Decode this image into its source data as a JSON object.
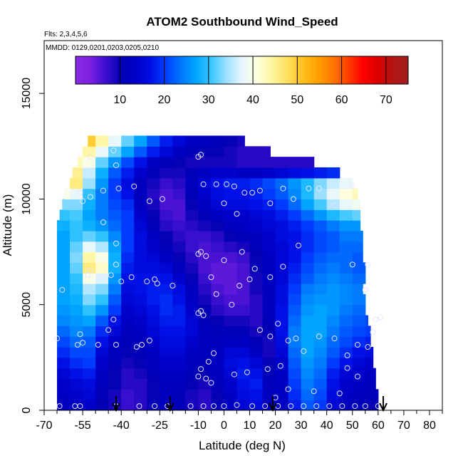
{
  "chart_data": {
    "type": "heatmap",
    "title": "ATOM2 Southbound Wind_Speed",
    "subtitle_flights": "Flts: 2,3,4,5,6",
    "subtitle_dates": "MMDD: 0129,0201,0203,0205,0210",
    "xlabel": "Latitude (deg N)",
    "ylabel": "Altitude (m)",
    "xlim": [
      -70,
      85
    ],
    "ylim": [
      0,
      17500
    ],
    "x_ticks": [
      -70,
      -55,
      -40,
      -25,
      -10,
      0,
      10,
      20,
      30,
      40,
      50,
      60,
      70,
      80
    ],
    "x_tick_labels": [
      "-70",
      "-55",
      "-40",
      "-25",
      "-10",
      "0",
      "10",
      "20",
      "30",
      "40",
      "50",
      "60",
      "70",
      "80"
    ],
    "x_minor_ticks": [
      -65,
      -60,
      -50,
      -45,
      -35,
      -30,
      -20,
      -15,
      -5,
      5,
      15,
      25,
      35,
      45,
      55,
      65,
      75,
      85
    ],
    "y_ticks": [
      0,
      5000,
      10000,
      15000
    ],
    "y_tick_labels": [
      "0",
      "5000",
      "10000",
      "15000"
    ],
    "colorbar": {
      "range": [
        0,
        75
      ],
      "ticks": [
        10,
        20,
        30,
        40,
        50,
        60,
        70
      ],
      "tick_labels": [
        "10",
        "20",
        "30",
        "40",
        "50",
        "60",
        "70"
      ],
      "colors": [
        "#8a2be2",
        "#7b1fe0",
        "#3b0fd0",
        "#0000b4",
        "#0000c8",
        "#0010e6",
        "#0040ff",
        "#0078ff",
        "#00a8ff",
        "#3cc8ff",
        "#a0e0ff",
        "#e6f6ff",
        "#ffffe0",
        "#fff5a0",
        "#ffe060",
        "#ffc020",
        "#ffa000",
        "#ff7800",
        "#ff4000",
        "#ff0000",
        "#dc0000",
        "#b41414",
        "#a01e1e"
      ]
    },
    "field_grid": {
      "lat_start": -65,
      "lat_end": 60,
      "lat_step": 5,
      "alt_start": 0,
      "alt_end": 12500,
      "alt_step": 500,
      "values": [
        [
          12,
          13,
          14,
          10,
          9,
          7,
          8,
          10,
          12,
          11,
          9,
          8,
          10,
          13,
          15,
          16,
          12,
          13,
          18,
          22,
          20,
          15,
          12,
          11,
          10,
          10
        ],
        [
          13,
          14,
          15,
          11,
          9,
          7,
          8,
          10,
          12,
          11,
          9,
          8,
          10,
          13,
          16,
          17,
          12,
          13,
          19,
          23,
          21,
          16,
          13,
          12,
          11,
          10
        ],
        [
          14,
          15,
          16,
          12,
          10,
          8,
          8,
          10,
          12,
          12,
          10,
          9,
          11,
          14,
          17,
          18,
          12,
          13,
          20,
          24,
          22,
          17,
          14,
          13,
          12,
          11
        ],
        [
          15,
          17,
          18,
          13,
          10,
          8,
          9,
          11,
          13,
          13,
          11,
          10,
          12,
          15,
          18,
          17,
          11,
          13,
          21,
          25,
          23,
          18,
          15,
          14,
          13,
          12
        ],
        [
          17,
          19,
          20,
          14,
          11,
          9,
          10,
          12,
          14,
          14,
          12,
          11,
          13,
          16,
          17,
          15,
          10,
          14,
          22,
          26,
          24,
          20,
          17,
          15,
          14,
          13
        ],
        [
          19,
          21,
          21,
          15,
          12,
          10,
          11,
          13,
          15,
          15,
          13,
          12,
          13,
          15,
          15,
          13,
          9,
          15,
          23,
          27,
          25,
          22,
          19,
          17,
          16,
          15
        ],
        [
          21,
          23,
          22,
          17,
          13,
          11,
          12,
          14,
          16,
          16,
          14,
          12,
          12,
          13,
          13,
          11,
          9,
          16,
          24,
          27,
          26,
          23,
          21,
          19,
          18,
          17
        ],
        [
          23,
          25,
          24,
          19,
          15,
          12,
          13,
          15,
          17,
          17,
          15,
          12,
          11,
          11,
          11,
          9,
          10,
          17,
          24,
          27,
          27,
          24,
          22,
          21,
          20,
          19
        ],
        [
          25,
          26,
          27,
          22,
          17,
          13,
          14,
          16,
          18,
          18,
          15,
          11,
          10,
          9,
          9,
          8,
          11,
          17,
          23,
          27,
          27,
          25,
          23,
          22,
          21,
          20
        ],
        [
          26,
          27,
          30,
          26,
          20,
          14,
          15,
          17,
          19,
          18,
          14,
          10,
          8,
          7,
          7,
          8,
          12,
          17,
          22,
          26,
          27,
          26,
          24,
          23,
          22,
          21
        ],
        [
          27,
          28,
          33,
          30,
          22,
          15,
          16,
          18,
          19,
          17,
          13,
          9,
          7,
          6,
          6,
          8,
          12,
          16,
          21,
          25,
          26,
          26,
          25,
          24,
          23,
          22
        ],
        [
          27,
          29,
          35,
          33,
          24,
          16,
          17,
          18,
          18,
          16,
          12,
          8,
          6,
          5,
          6,
          9,
          12,
          16,
          20,
          24,
          25,
          26,
          25,
          24,
          23,
          22
        ],
        [
          27,
          30,
          40,
          37,
          26,
          17,
          17,
          17,
          17,
          14,
          10,
          7,
          5,
          5,
          6,
          9,
          13,
          15,
          19,
          22,
          24,
          25,
          24,
          23,
          22,
          21
        ],
        [
          27,
          32,
          46,
          42,
          28,
          18,
          16,
          16,
          15,
          12,
          9,
          6,
          5,
          5,
          6,
          10,
          13,
          15,
          18,
          21,
          23,
          24,
          23,
          22,
          22,
          21
        ],
        [
          27,
          33,
          44,
          40,
          28,
          19,
          16,
          15,
          13,
          10,
          8,
          6,
          6,
          6,
          7,
          10,
          13,
          15,
          17,
          20,
          22,
          23,
          23,
          22,
          21,
          20
        ],
        [
          27,
          32,
          38,
          35,
          27,
          20,
          16,
          14,
          11,
          9,
          7,
          6,
          7,
          8,
          9,
          11,
          14,
          15,
          17,
          19,
          21,
          22,
          23,
          23,
          22,
          21
        ],
        [
          27,
          30,
          32,
          30,
          25,
          20,
          16,
          13,
          10,
          8,
          7,
          7,
          8,
          10,
          11,
          12,
          14,
          16,
          17,
          19,
          21,
          22,
          24,
          24,
          23,
          22
        ],
        [
          28,
          30,
          28,
          26,
          23,
          20,
          15,
          11,
          8,
          7,
          8,
          9,
          10,
          12,
          13,
          14,
          15,
          16,
          18,
          20,
          22,
          24,
          26,
          26,
          25,
          24
        ],
        [
          30,
          31,
          27,
          24,
          22,
          20,
          14,
          10,
          7,
          6,
          9,
          11,
          13,
          14,
          14,
          15,
          16,
          18,
          20,
          23,
          26,
          29,
          31,
          32,
          32,
          30
        ],
        [
          33,
          33,
          28,
          24,
          21,
          19,
          13,
          9,
          6,
          6,
          10,
          13,
          15,
          16,
          16,
          17,
          18,
          20,
          23,
          27,
          31,
          35,
          38,
          39,
          39,
          36
        ],
        [
          40,
          38,
          30,
          24,
          20,
          17,
          12,
          8,
          6,
          7,
          11,
          14,
          16,
          17,
          17,
          18,
          20,
          22,
          25,
          29,
          34,
          38,
          41,
          43,
          42,
          40
        ],
        [
          50,
          46,
          34,
          26,
          20,
          16,
          12,
          9,
          7,
          8,
          12,
          15,
          17,
          18,
          18,
          19,
          21,
          23,
          26,
          29,
          33,
          36,
          38,
          38,
          36,
          34
        ],
        [
          47,
          45,
          36,
          28,
          22,
          18,
          14,
          11,
          9,
          9,
          11,
          13,
          14,
          14,
          13,
          13,
          14,
          15,
          16,
          17,
          18,
          19,
          20,
          20,
          19,
          18
        ],
        [
          42,
          43,
          40,
          32,
          26,
          21,
          17,
          13,
          11,
          10,
          9,
          9,
          9,
          9,
          8,
          8,
          8,
          8,
          8,
          8,
          8,
          8,
          8,
          8,
          8,
          8
        ],
        [
          45,
          48,
          44,
          38,
          32,
          27,
          22,
          18,
          15,
          13,
          11,
          10,
          10,
          9,
          8,
          8,
          8,
          8,
          8,
          8,
          8,
          8,
          8,
          8,
          8,
          8
        ],
        [
          60,
          55,
          50,
          44,
          38,
          32,
          27,
          22,
          18,
          15,
          13,
          12,
          11,
          10,
          9,
          9,
          9,
          9,
          9,
          9,
          9,
          9,
          9,
          9,
          9,
          9
        ]
      ]
    },
    "field_extent": [
      [
        -65,
        60
      ],
      [
        -65,
        60
      ],
      [
        -65,
        59
      ],
      [
        -65,
        59
      ],
      [
        -65,
        58
      ],
      [
        -65,
        58
      ],
      [
        -65,
        57
      ],
      [
        -65,
        57
      ],
      [
        -65,
        56
      ],
      [
        -65,
        55
      ],
      [
        -65,
        55
      ],
      [
        -65,
        54
      ],
      [
        -65,
        55
      ],
      [
        -65,
        55
      ],
      [
        -65,
        54
      ],
      [
        -65,
        54
      ],
      [
        -65,
        54
      ],
      [
        -65,
        53
      ],
      [
        -64,
        53
      ],
      [
        -63,
        53
      ],
      [
        -62,
        52
      ],
      [
        -60,
        50
      ],
      [
        -59,
        45
      ],
      [
        -57,
        35
      ],
      [
        -55,
        18
      ],
      [
        -53,
        8
      ]
    ],
    "observations": [
      [
        -64,
        200
      ],
      [
        -58,
        200
      ],
      [
        -56,
        200
      ],
      [
        -42,
        200
      ],
      [
        -33,
        200
      ],
      [
        -27,
        200
      ],
      [
        -22,
        200
      ],
      [
        -13,
        200
      ],
      [
        -8,
        200
      ],
      [
        -4,
        200
      ],
      [
        0,
        200
      ],
      [
        5,
        250
      ],
      [
        11,
        200
      ],
      [
        16,
        200
      ],
      [
        21,
        200
      ],
      [
        26,
        200
      ],
      [
        31,
        200
      ],
      [
        36,
        200
      ],
      [
        41,
        200
      ],
      [
        46,
        200
      ],
      [
        51,
        200
      ],
      [
        55,
        200
      ],
      [
        60,
        200
      ],
      [
        -10,
        1600
      ],
      [
        -9,
        1950
      ],
      [
        -5,
        1300
      ],
      [
        -7,
        1500
      ],
      [
        -6,
        2300
      ],
      [
        -4,
        2700
      ],
      [
        4,
        1700
      ],
      [
        9,
        1800
      ],
      [
        17,
        1950
      ],
      [
        22,
        2100
      ],
      [
        20,
        600
      ],
      [
        25,
        1000
      ],
      [
        35,
        900
      ],
      [
        45,
        800
      ],
      [
        52,
        1600
      ],
      [
        48,
        2000
      ],
      [
        -65,
        3400
      ],
      [
        -57,
        3100
      ],
      [
        -56,
        3600
      ],
      [
        -55,
        3200
      ],
      [
        -49,
        3100
      ],
      [
        -45,
        3800
      ],
      [
        -42,
        3100
      ],
      [
        -34,
        3000
      ],
      [
        -32,
        3100
      ],
      [
        -29,
        3300
      ],
      [
        -43,
        4300
      ],
      [
        -63,
        5700
      ],
      [
        -40,
        6100
      ],
      [
        -36,
        6300
      ],
      [
        -30,
        6100
      ],
      [
        -26,
        6000
      ],
      [
        -27,
        6200
      ],
      [
        -20,
        5900
      ],
      [
        -10,
        4600
      ],
      [
        -9,
        4700
      ],
      [
        -8,
        4500
      ],
      [
        -3,
        5500
      ],
      [
        3,
        5000
      ],
      [
        6,
        5900
      ],
      [
        10,
        6200
      ],
      [
        14,
        3800
      ],
      [
        18,
        3500
      ],
      [
        21,
        4100
      ],
      [
        25,
        3300
      ],
      [
        28,
        3400
      ],
      [
        31,
        2800
      ],
      [
        37,
        3500
      ],
      [
        43,
        3400
      ],
      [
        48,
        2600
      ],
      [
        52,
        3100
      ],
      [
        56,
        3000
      ],
      [
        58,
        3700
      ],
      [
        59,
        4300
      ],
      [
        61,
        4400
      ],
      [
        55,
        5700
      ],
      [
        -48,
        6300
      ],
      [
        -44,
        6400
      ],
      [
        -42,
        6900
      ],
      [
        -42,
        7900
      ],
      [
        -53,
        6400
      ],
      [
        -52,
        6600
      ],
      [
        -10,
        7400
      ],
      [
        -9,
        7500
      ],
      [
        -7,
        7300
      ],
      [
        -5,
        6300
      ],
      [
        0,
        7100
      ],
      [
        7,
        7500
      ],
      [
        12,
        6700
      ],
      [
        18,
        6300
      ],
      [
        23,
        6800
      ],
      [
        29,
        7800
      ],
      [
        50,
        6900
      ],
      [
        56,
        6900
      ],
      [
        -47,
        8900
      ],
      [
        -55,
        9900
      ],
      [
        -52,
        10100
      ],
      [
        -47,
        10400
      ],
      [
        -41,
        10500
      ],
      [
        -35,
        10600
      ],
      [
        -29,
        9900
      ],
      [
        -24,
        10000
      ],
      [
        -8,
        10700
      ],
      [
        -3,
        10700
      ],
      [
        1,
        10700
      ],
      [
        4,
        10600
      ],
      [
        8,
        10300
      ],
      [
        11,
        10300
      ],
      [
        14,
        10400
      ],
      [
        18,
        9800
      ],
      [
        23,
        10500
      ],
      [
        27,
        10000
      ],
      [
        33,
        10500
      ],
      [
        37,
        10500
      ],
      [
        43,
        9700
      ],
      [
        50,
        10600
      ],
      [
        0,
        9800
      ],
      [
        5,
        9300
      ],
      [
        -56,
        10300
      ],
      [
        -42,
        11600
      ],
      [
        -52,
        12000
      ],
      [
        -43,
        12300
      ],
      [
        -10,
        12000
      ],
      [
        -9,
        12100
      ]
    ],
    "arrows_lat": [
      -42,
      -21,
      19,
      62
    ]
  }
}
